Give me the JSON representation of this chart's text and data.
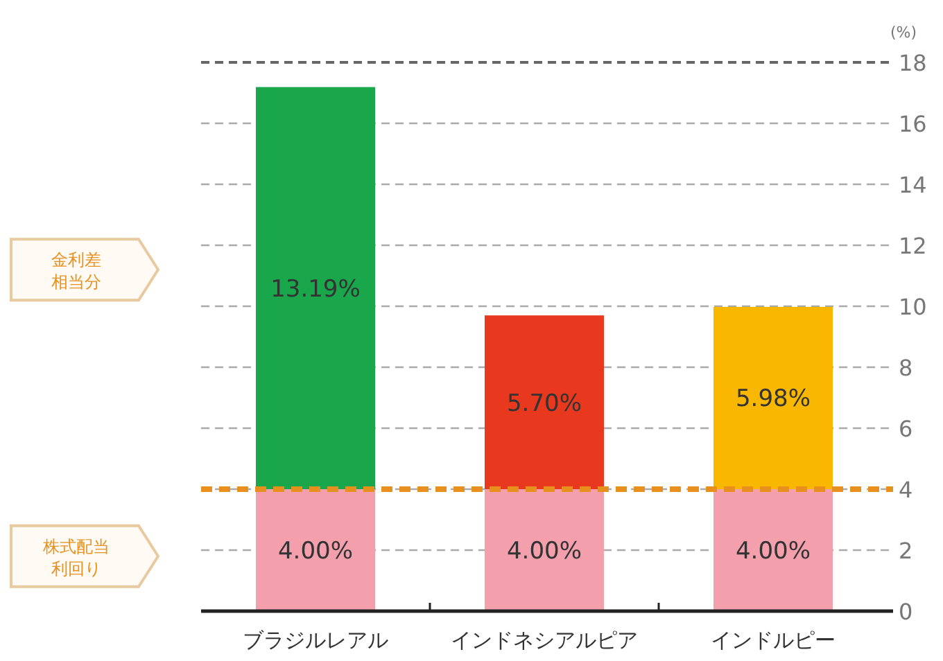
{
  "chart_data": {
    "type": "bar",
    "stacked": true,
    "ylabel": "(%)",
    "categories": [
      "ブラジルレアル",
      "インドネシアルピア",
      "インドルピー"
    ],
    "series": [
      {
        "color": "#f3a0ac",
        "values": [
          4.0,
          4.0,
          4.0
        ],
        "value_labels": [
          "4.00%",
          "4.00%",
          "4.00%"
        ]
      },
      {
        "colors": [
          "#1aa64a",
          "#e8391f",
          "#f9b700"
        ],
        "values": [
          13.19,
          5.7,
          5.98
        ],
        "value_labels": [
          "13.19%",
          "5.70%",
          "5.98%"
        ]
      }
    ],
    "ylim": [
      0,
      18
    ],
    "yticks": [
      0,
      2,
      4,
      6,
      8,
      10,
      12,
      14,
      16,
      18
    ],
    "grid": "y",
    "ref_lines": [
      {
        "axis": "y",
        "value": 4,
        "color": "#e8901e",
        "line_style": "dashed"
      }
    ],
    "annotations": [
      "金利差相当分",
      "株式配当利回り"
    ]
  }
}
